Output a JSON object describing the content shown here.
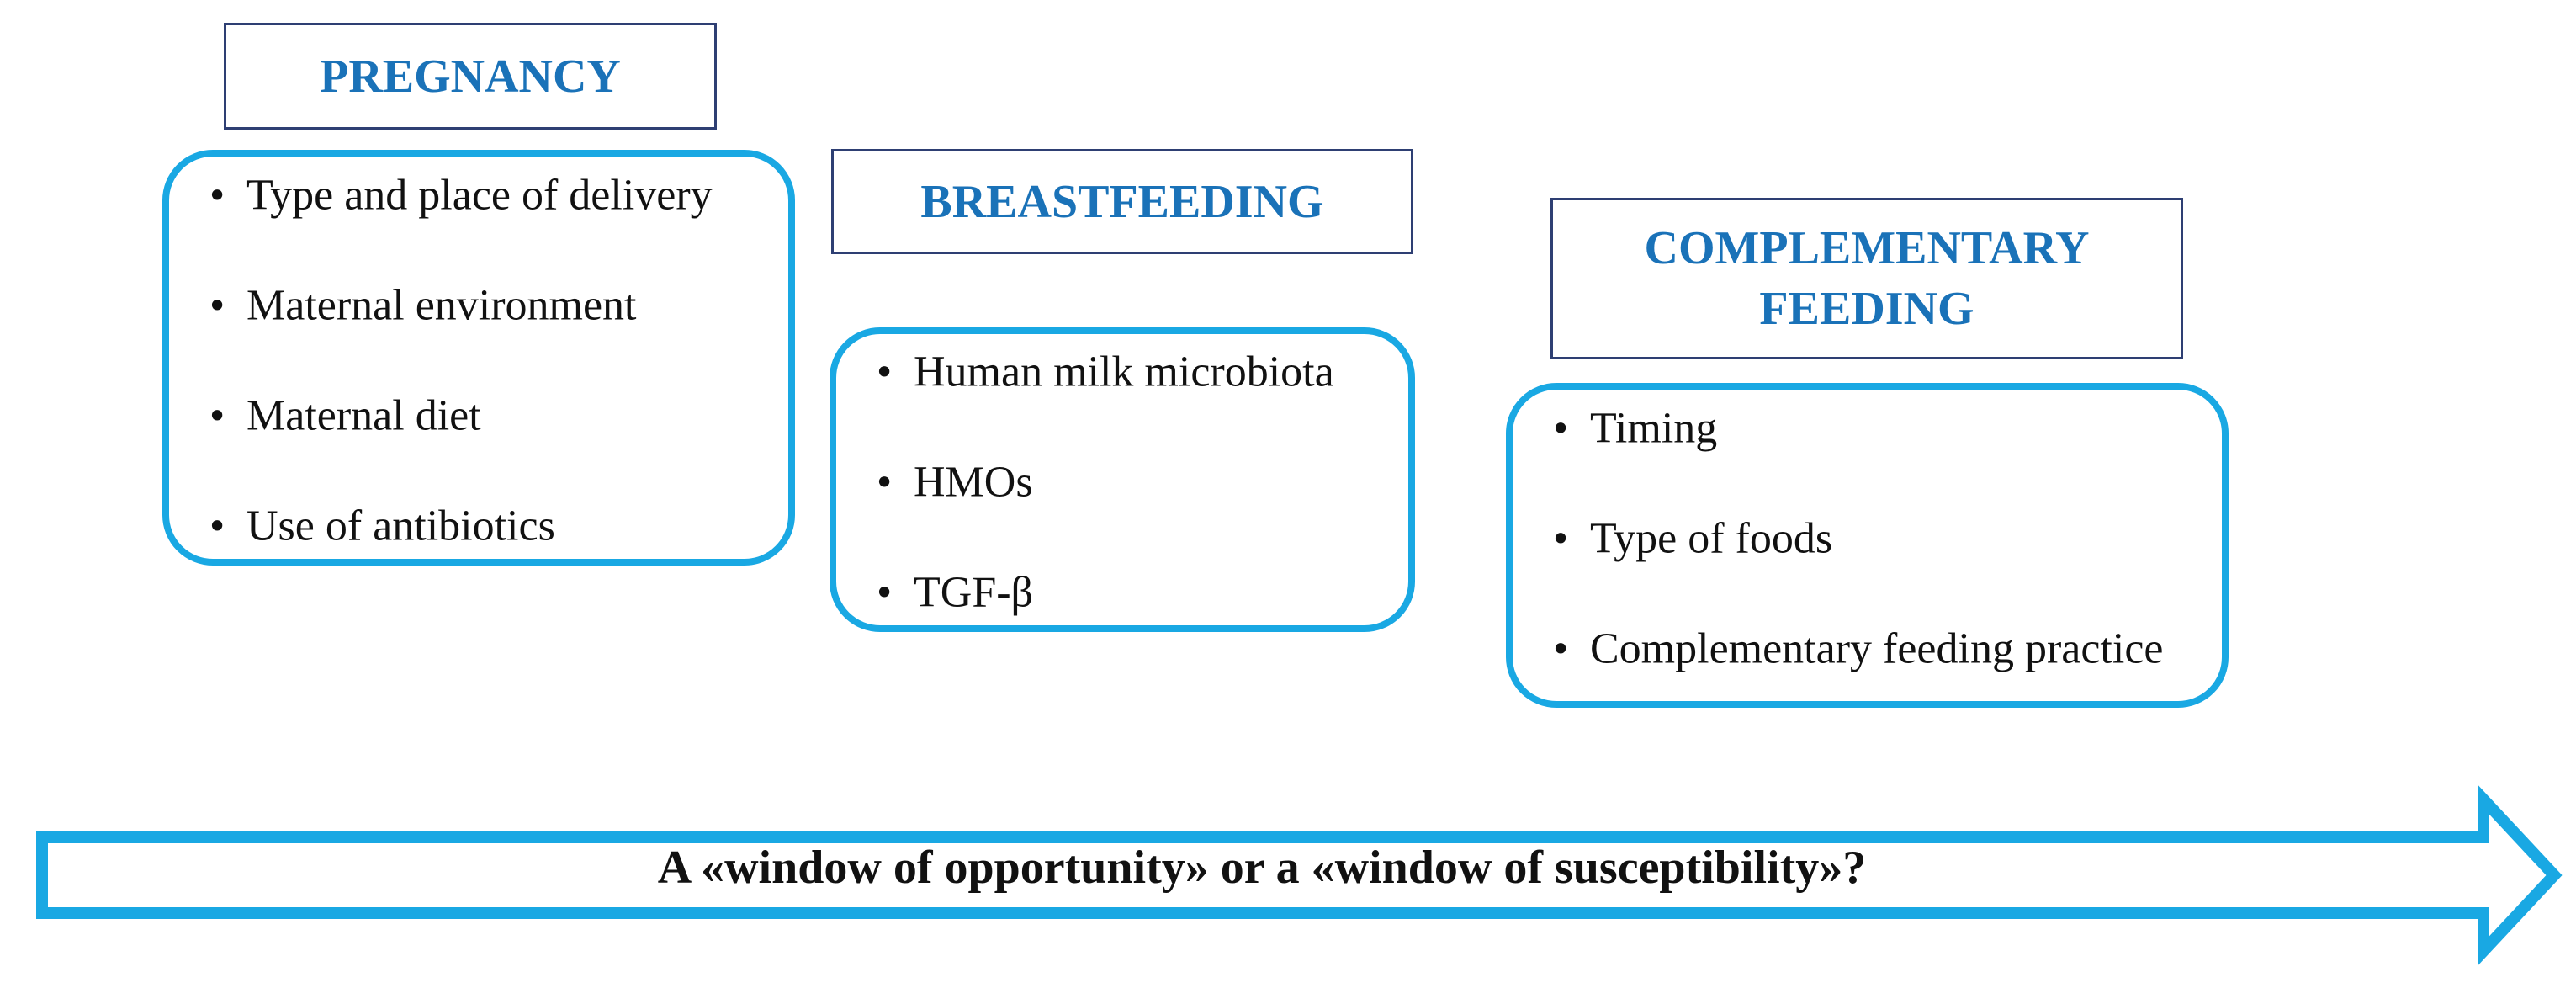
{
  "colors": {
    "header_text": "#1a72b8",
    "header_border": "#2e3f73",
    "accent": "#19a8e3"
  },
  "stages": [
    {
      "title": "PREGNANCY",
      "items": [
        "Type and place of delivery",
        "Maternal environment",
        "Maternal diet",
        "Use of antibiotics"
      ]
    },
    {
      "title": "BREASTFEEDING",
      "items": [
        "Human milk microbiota",
        "HMOs",
        "TGF-β"
      ]
    },
    {
      "title_line1": "COMPLEMENTARY",
      "title_line2": "FEEDING",
      "items": [
        "Timing",
        "Type of foods",
        "Complementary feeding practice"
      ]
    }
  ],
  "bullet": "•",
  "timeline": {
    "label": "A «window of opportunity» or a «window of susceptibility»?"
  }
}
